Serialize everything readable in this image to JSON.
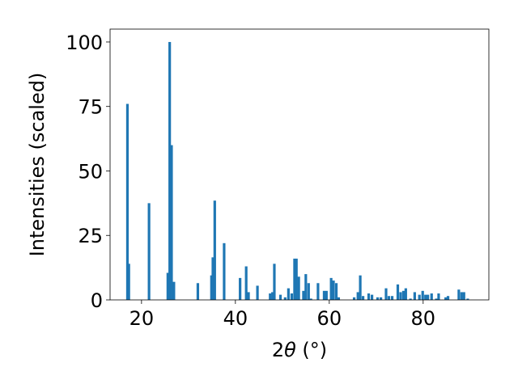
{
  "chart_data": {
    "type": "bar",
    "title": "",
    "xlabel_prefix": "2",
    "xlabel_symbol": "θ",
    "xlabel_suffix": " (°)",
    "ylabel": "Intensities (scaled)",
    "xlim": [
      13.3,
      94.0
    ],
    "ylim": [
      0,
      105
    ],
    "xticks": [
      20,
      40,
      60,
      80
    ],
    "xtick_labels": [
      "20",
      "40",
      "60",
      "80"
    ],
    "yticks": [
      0,
      25,
      50,
      75,
      100
    ],
    "ytick_labels": [
      "0",
      "25",
      "50",
      "75",
      "100"
    ],
    "bar_color": "#1f77b4",
    "bar_width": 0.55,
    "grid": false,
    "x": [
      17.0,
      17.3,
      21.6,
      25.6,
      26.0,
      26.4,
      26.9,
      32.0,
      34.9,
      35.2,
      35.6,
      37.6,
      41.0,
      42.3,
      42.8,
      44.7,
      47.4,
      47.9,
      48.3,
      49.6,
      50.6,
      51.3,
      52.0,
      52.6,
      53.0,
      53.5,
      54.5,
      55.0,
      55.6,
      56.1,
      57.6,
      58.9,
      59.4,
      60.4,
      60.9,
      61.5,
      62.0,
      65.3,
      66.1,
      66.6,
      67.2,
      68.4,
      69.1,
      70.3,
      71.0,
      72.1,
      72.7,
      73.4,
      74.6,
      75.2,
      75.8,
      76.3,
      77.3,
      78.2,
      79.2,
      79.9,
      80.5,
      81.0,
      81.8,
      82.8,
      83.3,
      84.8,
      85.3,
      87.6,
      88.2,
      88.7,
      89.5
    ],
    "values": [
      76.0,
      14.0,
      37.5,
      10.5,
      100.0,
      60.0,
      7.0,
      6.5,
      9.5,
      16.5,
      38.5,
      22.0,
      8.5,
      13.0,
      3.0,
      5.5,
      2.5,
      3.0,
      14.0,
      2.0,
      1.0,
      4.5,
      2.5,
      16.0,
      16.0,
      9.0,
      3.5,
      10.0,
      6.5,
      0.5,
      6.5,
      3.5,
      3.5,
      8.5,
      7.5,
      6.5,
      1.0,
      1.0,
      3.0,
      9.5,
      1.5,
      2.5,
      2.0,
      1.0,
      1.0,
      4.5,
      1.5,
      1.5,
      6.0,
      3.0,
      3.5,
      4.5,
      0.5,
      3.0,
      2.0,
      3.5,
      2.0,
      2.0,
      2.5,
      0.5,
      2.5,
      1.0,
      1.5,
      4.0,
      3.0,
      3.0,
      0.5
    ]
  }
}
